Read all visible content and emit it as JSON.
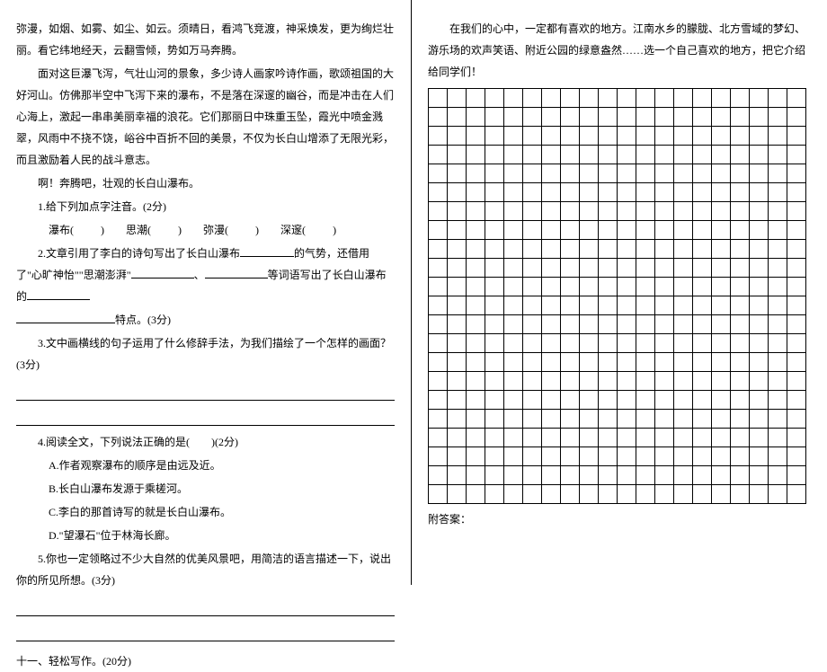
{
  "left": {
    "p1": "弥漫，如烟、如雾、如尘、如云。须晴日，看鸿飞竞渡，神采焕发，更为绚烂壮丽。看它纬地经天，云翻雪倾，势如万马奔腾。",
    "p2": "面对这巨瀑飞泻，气壮山河的景象，多少诗人画家吟诗作画，歌颂祖国的大好河山。仿佛那半空中飞泻下来的瀑布，不是落在深邃的幽谷，而是冲击在人们心海上，激起一串串美丽幸福的浪花。它们那丽日中珠重玉坠，霞光中喷金溅翠，风雨中不挠不饶，峪谷中百折不回的美景，不仅为长白山增添了无限光彩，而且激励着人民的战斗意志。",
    "p3": "啊！奔腾吧，壮观的长白山瀑布。",
    "q1_lead": "1.给下列加点字注音。(2分)",
    "q1_items_a": "瀑布(",
    "q1_items_b": ")　　思潮(",
    "q1_items_c": ")　　弥漫(",
    "q1_items_d": ")　　深邃(",
    "q1_items_e": ")",
    "q2_a": "2.文章引用了李白的诗句写出了长白山瀑布",
    "q2_b": "的气势，还借用了\"心旷神怡\"\"思潮澎湃\"",
    "q2_c": "、",
    "q2_d": "等词语写出了长白山瀑布的",
    "q2_e": "特点。(3分)",
    "q3": "3.文中画横线的句子运用了什么修辞手法，为我们描绘了一个怎样的画面？(3分)",
    "q4": "4.阅读全文，下列说法正确的是(　　)(2分)",
    "q4a": "A.作者观察瀑布的顺序是由远及近。",
    "q4b": "B.长白山瀑布发源于乘槎河。",
    "q4c": "C.李白的那首诗写的就是长白山瀑布。",
    "q4d": "D.\"望瀑石\"位于林海长廊。",
    "q5": "5.你也一定领略过不少大自然的优美风景吧，用简洁的语言描述一下，说出你的所见所想。(3分)",
    "sec11": "十一、轻松写作。(20分)"
  },
  "right": {
    "intro": "在我们的心中，一定都有喜欢的地方。江南水乡的朦胧、北方雪域的梦幻、游乐场的欢声笑语、附近公园的绿意盎然……选一个自己喜欢的地方，把它介绍给同学们！",
    "footer": "附答案："
  },
  "grid": {
    "rows": 22,
    "cols": 20
  }
}
